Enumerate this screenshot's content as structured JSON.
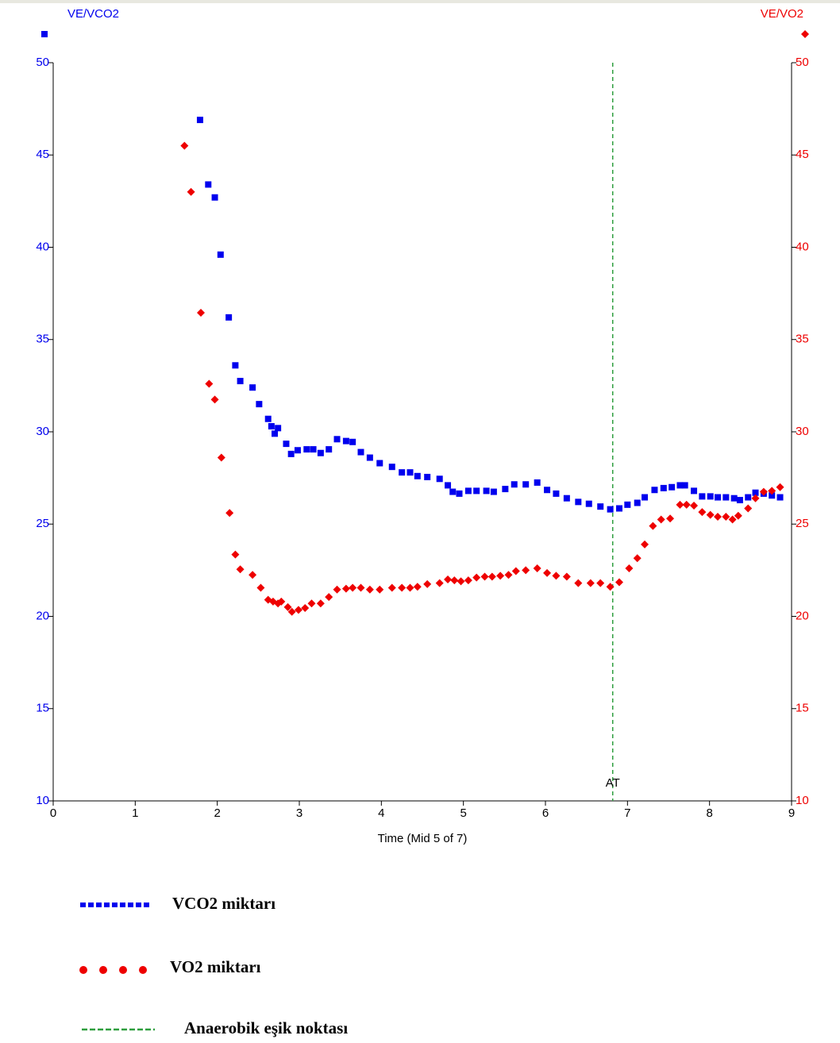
{
  "chart_data": {
    "type": "scatter",
    "x_label": "Time (Mid 5 of 7)",
    "y_label": "VE/VCO2",
    "y2_label": "VE/VO2",
    "xlim": [
      0,
      9
    ],
    "xticks": [
      0,
      1,
      2,
      3,
      4,
      5,
      6,
      7,
      8,
      9
    ],
    "ylim": [
      10,
      50
    ],
    "yticks": [
      10,
      15,
      20,
      25,
      30,
      35,
      40,
      45,
      50
    ],
    "y2lim": [
      10,
      50
    ],
    "y2ticks": [
      10,
      15,
      20,
      25,
      30,
      35,
      40,
      45,
      50
    ],
    "threshold": {
      "x": 6.82,
      "label": "AT",
      "name": "Anaerobik eşik noktası",
      "color": "#2e9e3e"
    },
    "series": [
      {
        "name": "VCO2 miktarı",
        "color": "#0000ee",
        "marker": "square",
        "x": [
          1.79,
          1.89,
          1.97,
          2.04,
          2.14,
          2.22,
          2.28,
          2.43,
          2.51,
          2.62,
          2.66,
          2.7,
          2.74,
          2.84,
          2.9,
          2.98,
          3.09,
          3.17,
          3.26,
          3.36,
          3.46,
          3.57,
          3.65,
          3.75,
          3.86,
          3.98,
          4.13,
          4.25,
          4.35,
          4.44,
          4.56,
          4.71,
          4.81,
          4.87,
          4.95,
          5.06,
          5.16,
          5.28,
          5.37,
          5.51,
          5.62,
          5.76,
          5.9,
          6.02,
          6.13,
          6.26,
          6.4,
          6.53,
          6.67,
          6.79,
          6.9,
          7.0,
          7.12,
          7.21,
          7.33,
          7.44,
          7.54,
          7.64,
          7.7,
          7.81,
          7.91,
          8.01,
          8.1,
          8.2,
          8.3,
          8.37,
          8.47,
          8.56,
          8.66,
          8.76,
          8.86
        ],
        "values": [
          46.9,
          43.4,
          42.7,
          39.6,
          36.2,
          33.6,
          32.75,
          32.4,
          31.5,
          30.7,
          30.3,
          29.9,
          30.2,
          29.35,
          28.8,
          29.0,
          29.05,
          29.05,
          28.85,
          29.05,
          29.6,
          29.5,
          29.45,
          28.9,
          28.6,
          28.3,
          28.1,
          27.8,
          27.8,
          27.6,
          27.55,
          27.45,
          27.1,
          26.75,
          26.65,
          26.8,
          26.8,
          26.8,
          26.75,
          26.9,
          27.15,
          27.15,
          27.25,
          26.85,
          26.65,
          26.4,
          26.2,
          26.1,
          25.95,
          25.8,
          25.85,
          26.05,
          26.15,
          26.45,
          26.85,
          26.95,
          27.0,
          27.1,
          27.1,
          26.8,
          26.5,
          26.5,
          26.45,
          26.45,
          26.4,
          26.3,
          26.45,
          26.7,
          26.65,
          26.55,
          26.45
        ]
      },
      {
        "name": "VO2 miktarı",
        "color": "#ee0000",
        "marker": "diamond",
        "axis": "y2",
        "x": [
          1.6,
          1.68,
          1.8,
          1.9,
          1.97,
          2.05,
          2.15,
          2.22,
          2.28,
          2.43,
          2.53,
          2.62,
          2.68,
          2.74,
          2.78,
          2.86,
          2.91,
          2.99,
          3.07,
          3.15,
          3.26,
          3.36,
          3.46,
          3.57,
          3.65,
          3.75,
          3.86,
          3.98,
          4.13,
          4.25,
          4.35,
          4.44,
          4.56,
          4.71,
          4.81,
          4.89,
          4.97,
          5.06,
          5.16,
          5.26,
          5.35,
          5.45,
          5.55,
          5.64,
          5.76,
          5.9,
          6.02,
          6.13,
          6.26,
          6.4,
          6.55,
          6.67,
          6.79,
          6.9,
          7.02,
          7.12,
          7.21,
          7.31,
          7.41,
          7.52,
          7.64,
          7.72,
          7.81,
          7.91,
          8.01,
          8.1,
          8.2,
          8.28,
          8.35,
          8.47,
          8.56,
          8.66,
          8.76,
          8.86
        ],
        "values": [
          45.5,
          43.0,
          36.45,
          32.6,
          31.75,
          28.6,
          25.6,
          23.35,
          22.55,
          22.25,
          21.55,
          20.9,
          20.8,
          20.7,
          20.8,
          20.5,
          20.25,
          20.35,
          20.45,
          20.7,
          20.7,
          21.05,
          21.45,
          21.5,
          21.55,
          21.55,
          21.45,
          21.45,
          21.55,
          21.55,
          21.55,
          21.6,
          21.75,
          21.8,
          22.0,
          21.95,
          21.9,
          21.95,
          22.1,
          22.15,
          22.15,
          22.2,
          22.25,
          22.45,
          22.5,
          22.6,
          22.35,
          22.2,
          22.15,
          21.8,
          21.8,
          21.8,
          21.6,
          21.85,
          22.6,
          23.15,
          23.9,
          24.9,
          25.25,
          25.3,
          26.05,
          26.05,
          26.0,
          25.65,
          25.5,
          25.4,
          25.4,
          25.25,
          25.45,
          25.85,
          26.4,
          26.75,
          26.8,
          27.0
        ]
      }
    ]
  }
}
